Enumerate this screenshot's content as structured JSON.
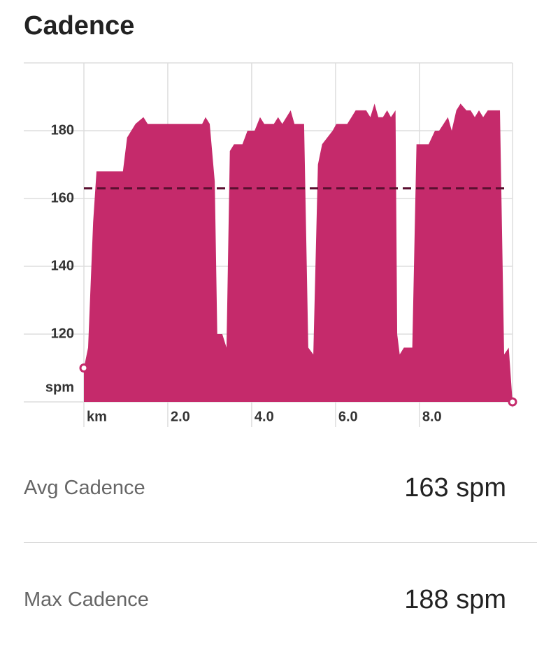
{
  "header": {
    "title": "Cadence"
  },
  "chart_data": {
    "type": "area",
    "color": "#c52a6b",
    "average": 163,
    "average_color": "#5a1030",
    "x": [
      0,
      0.1,
      0.22,
      0.3,
      0.93,
      1.03,
      1.23,
      1.42,
      1.52,
      2.82,
      2.9,
      3.0,
      3.12,
      3.18,
      3.3,
      3.4,
      3.48,
      3.58,
      3.78,
      3.9,
      4.07,
      4.2,
      4.3,
      4.53,
      4.63,
      4.73,
      4.93,
      5.02,
      5.25,
      5.35,
      5.47,
      5.58,
      5.68,
      5.93,
      6.02,
      6.28,
      6.38,
      6.48,
      6.73,
      6.83,
      6.93,
      7.02,
      7.13,
      7.23,
      7.32,
      7.43,
      7.47,
      7.53,
      7.63,
      7.83,
      7.93,
      8.22,
      8.37,
      8.47,
      8.68,
      8.77,
      8.88,
      8.98,
      9.12,
      9.22,
      9.32,
      9.42,
      9.52,
      9.63,
      9.92,
      10.02,
      10.13,
      10.22
    ],
    "values": [
      110,
      116,
      153,
      168,
      168,
      178,
      182,
      184,
      182,
      182,
      184,
      182,
      165,
      120,
      120,
      116,
      174,
      176,
      176,
      180,
      180,
      184,
      182,
      182,
      184,
      182,
      186,
      182,
      182,
      116,
      114,
      170,
      176,
      180,
      182,
      182,
      184,
      186,
      186,
      184,
      188,
      184,
      184,
      186,
      184,
      186,
      120,
      114,
      116,
      116,
      176,
      176,
      180,
      180,
      184,
      180,
      186,
      188,
      186,
      186,
      184,
      186,
      184,
      186,
      186,
      114,
      116,
      100
    ],
    "xlim": [
      0,
      10.22
    ],
    "ylim": [
      100,
      200
    ],
    "xticks": [
      {
        "value": 0,
        "label": "km"
      },
      {
        "value": 2,
        "label": "2.0"
      },
      {
        "value": 4,
        "label": "4.0"
      },
      {
        "value": 6,
        "label": "6.0"
      },
      {
        "value": 8,
        "label": "8.0"
      }
    ],
    "yticks": [
      {
        "value": 100,
        "label": "spm"
      },
      120,
      140,
      160,
      180
    ],
    "grid": true
  },
  "stats": [
    {
      "label": "Avg Cadence",
      "value": "163 spm"
    },
    {
      "label": "Max Cadence",
      "value": "188 spm"
    }
  ]
}
